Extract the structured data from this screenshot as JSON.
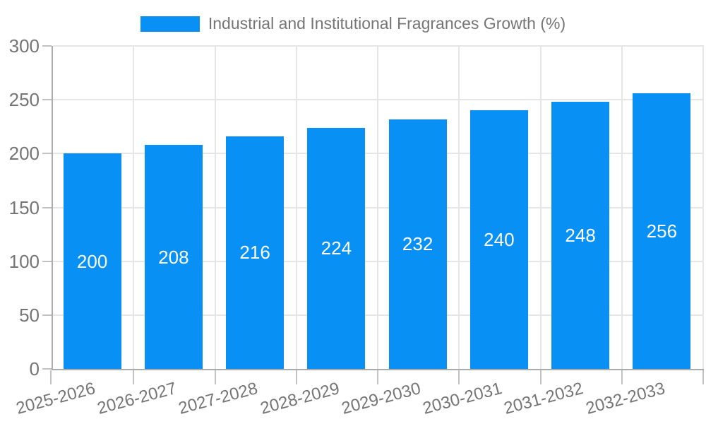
{
  "legend": {
    "label": "Industrial and Institutional Fragrances Growth (%)",
    "swatch_color": "#0890f5"
  },
  "chart_data": {
    "type": "bar",
    "title": "Industrial and Institutional Fragrances Growth (%)",
    "categories": [
      "2025-2026",
      "2026-2027",
      "2027-2028",
      "2028-2029",
      "2029-2030",
      "2030-2031",
      "2031-2032",
      "2032-2033"
    ],
    "values": [
      200,
      208,
      216,
      224,
      232,
      240,
      248,
      256
    ],
    "series": [
      {
        "name": "Industrial and Institutional Fragrances Growth (%)",
        "values": [
          200,
          208,
          216,
          224,
          232,
          240,
          248,
          256
        ]
      }
    ],
    "xlabel": "",
    "ylabel": "",
    "ylim": [
      0,
      300
    ],
    "yticks": [
      0,
      50,
      100,
      150,
      200,
      250,
      300
    ],
    "grid": true,
    "legend_position": "top",
    "value_label_position": "inside-center",
    "x_label_rotation_deg": -15,
    "bar_color": "#0890f5",
    "value_label_color": "#ffffff"
  },
  "colors": {
    "background": "#ffffff",
    "bar": "#0890f5",
    "axis_line": "#ababab",
    "gridline": "#e6e6e6",
    "tick": "#c2c2c2",
    "axis_text": "#757575",
    "value_label_text": "#ffffff"
  }
}
